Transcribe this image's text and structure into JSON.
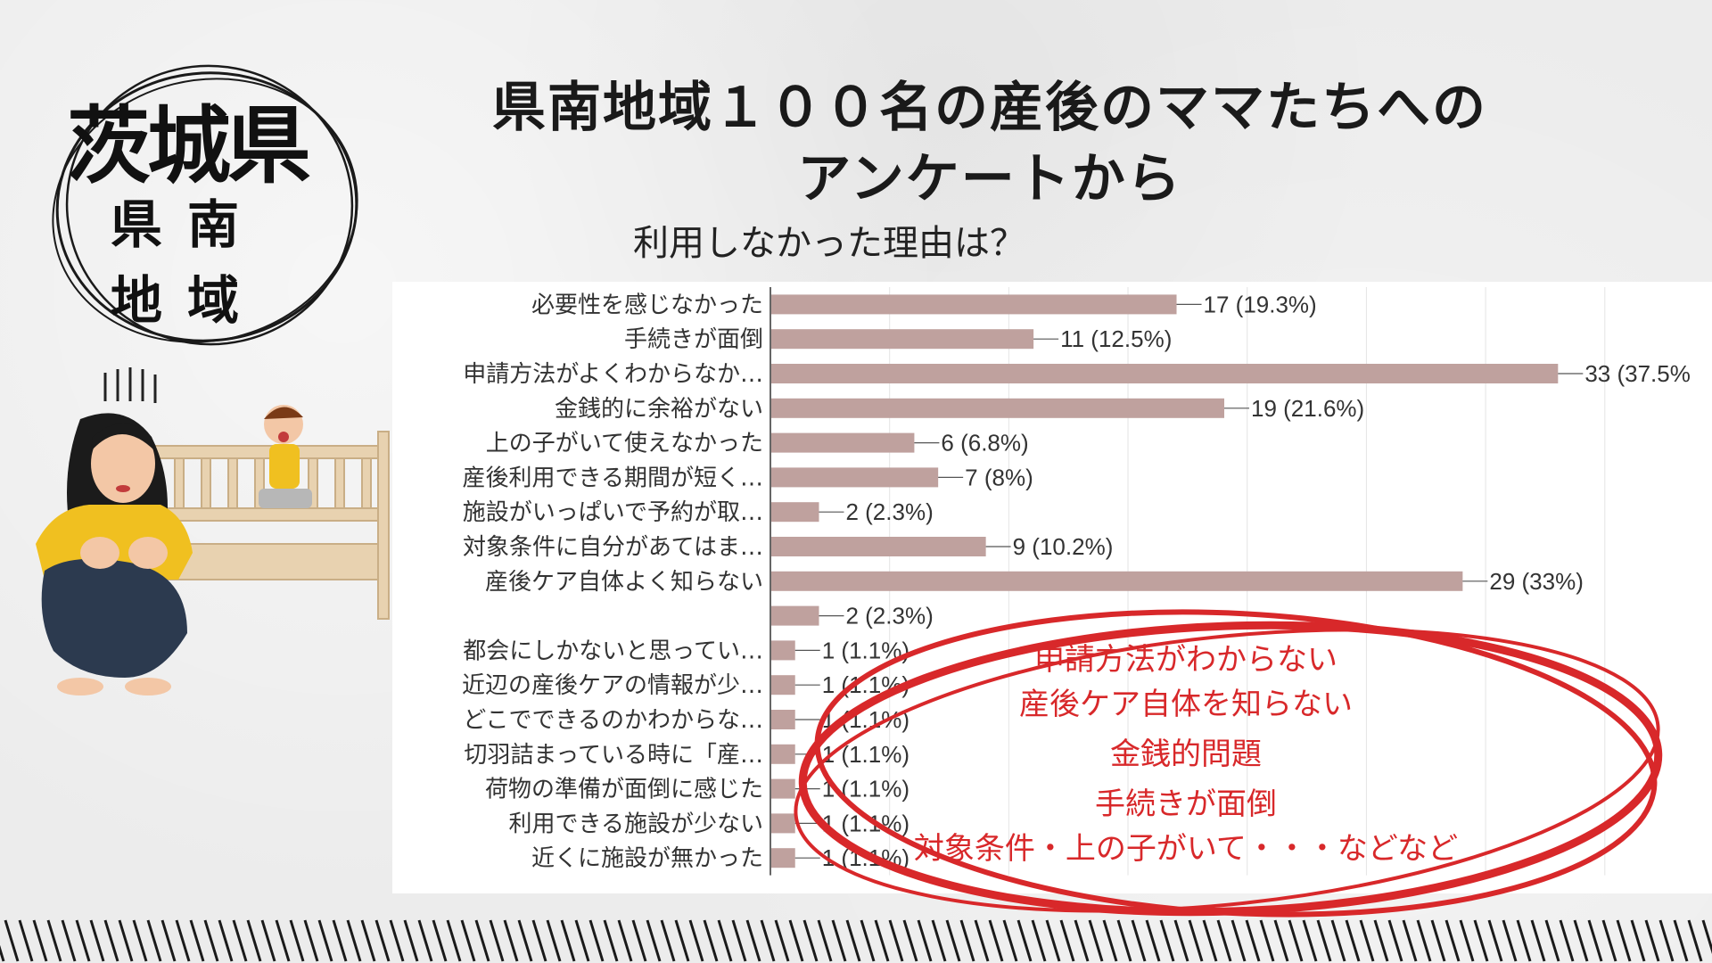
{
  "header": {
    "title_line1": "県南地域１００名の産後のママたちへの",
    "title_line2": "アンケートから",
    "question": "利用しなかった理由は？"
  },
  "badge": {
    "prefecture": "茨城県",
    "region_line1": "県南",
    "region_line2": "地域"
  },
  "callout": {
    "lines": [
      "申請方法がわからない",
      "産後ケア自体を知らない",
      "金銭的問題",
      "手続きが面倒",
      "対象条件・上の子がいて・・・などなど"
    ]
  },
  "colors": {
    "bar": "#bfa19e",
    "accent_red": "#d8282a",
    "text": "#333333"
  },
  "chart_data": {
    "type": "bar",
    "orientation": "horizontal",
    "categories": [
      "必要性を感じなかった",
      "手続きが面倒",
      "申請方法がよくわからなか…",
      "金銭的に余裕がない",
      "上の子がいて使えなかった",
      "産後利用できる期間が短く…",
      "施設がいっぱいで予約が取…",
      "対象条件に自分があてはま…",
      "産後ケア自体よく知らない",
      "",
      "都会にしかないと思ってい…",
      "近辺の産後ケアの情報が少…",
      "どこでできるのかわからな…",
      "切羽詰まっている時に「産…",
      "荷物の準備が面倒に感じた",
      "利用できる施設が少ない",
      "近くに施設が無かった"
    ],
    "values": [
      17,
      11,
      33,
      19,
      6,
      7,
      2,
      9,
      29,
      2,
      1,
      1,
      1,
      1,
      1,
      1,
      1
    ],
    "data_labels": [
      "17 (19.3%)",
      "11 (12.5%)",
      "33 (37.5%",
      "19 (21.6%)",
      "6 (6.8%)",
      "7 (8%)",
      "2 (2.3%)",
      "9 (10.2%)",
      "29 (33%)",
      "2 (2.3%)",
      "1 (1.1%)",
      "1 (1.1%)",
      "1 (1.1%)",
      "1 (1.1%)",
      "1 (1.1%)",
      "1 (1.1%)",
      "1 (1.1%)"
    ],
    "xlim": [
      0,
      38
    ],
    "grid": true
  }
}
